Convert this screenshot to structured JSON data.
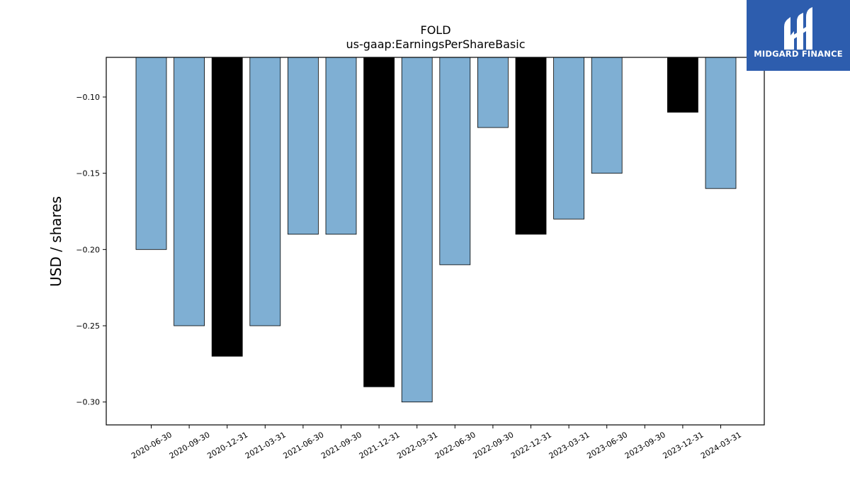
{
  "chart_data": {
    "type": "bar",
    "title": "FOLD",
    "subtitle": "us-gaap:EarningsPerShareBasic",
    "xlabel": "",
    "ylabel": "USD / shares",
    "categories": [
      "2020-06-30",
      "2020-09-30",
      "2020-12-31",
      "2021-03-31",
      "2021-06-30",
      "2021-09-30",
      "2021-12-31",
      "2022-03-31",
      "2022-06-30",
      "2022-09-30",
      "2022-12-31",
      "2023-03-31",
      "2023-06-30",
      "2023-09-30",
      "2023-12-31",
      "2024-03-31"
    ],
    "values": [
      -0.2,
      -0.25,
      -0.27,
      -0.25,
      -0.19,
      -0.19,
      -0.29,
      -0.3,
      -0.21,
      -0.12,
      -0.19,
      -0.18,
      -0.15,
      null,
      -0.11,
      -0.16
    ],
    "highlight": [
      false,
      false,
      true,
      false,
      false,
      false,
      true,
      false,
      false,
      false,
      true,
      false,
      false,
      false,
      true,
      false
    ],
    "ylim": [
      -0.315,
      -0.074
    ],
    "yticks": [
      -0.1,
      -0.15,
      -0.2,
      -0.25,
      -0.3
    ],
    "ytick_labels": [
      "−0.10",
      "−0.15",
      "−0.20",
      "−0.25",
      "−0.30"
    ],
    "grid": false,
    "colors": {
      "bar": "#7fafd3",
      "highlight": "#000000",
      "edge": "#000000"
    }
  },
  "logo": {
    "text": "MIDGARD FINANCE",
    "background": "#2d5dae",
    "icon": "midgard-logo-icon"
  }
}
